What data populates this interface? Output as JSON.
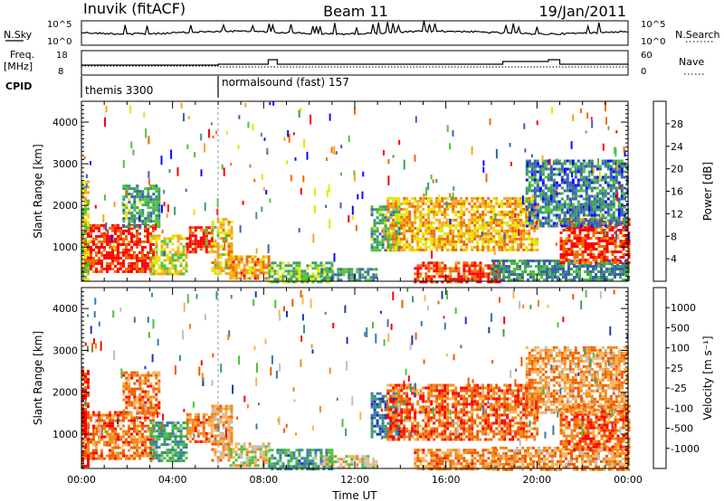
{
  "header": {
    "title": "Inuvik (fitACF)",
    "beam": "Beam 11",
    "date": "19/Jan/2011"
  },
  "strip_labels": {
    "nsky": "N.Sky",
    "nsearch": "N.Search",
    "freq_line1": "Freq.",
    "freq_line2": "[MHz]",
    "nave": "Nave",
    "cpid": "CPID",
    "nsky_ticks": [
      "10^5",
      "10^0"
    ],
    "nsearch_ticks": [
      "10^5",
      "10^0"
    ],
    "freq_ticks": [
      "18",
      "8"
    ],
    "nave_ticks": [
      "60",
      "0"
    ]
  },
  "cpid_segments": [
    {
      "label": "themis 3300",
      "start_hour": 0
    },
    {
      "label": "normalsound (fast) 157",
      "start_hour": 6
    }
  ],
  "colors": {
    "power": [
      "#0a0aff",
      "#3d5fb6",
      "#3f9a6a",
      "#52c23a",
      "#e6e600",
      "#f5a623",
      "#f06a00",
      "#ff0000"
    ],
    "velocity": [
      "#ff0000",
      "#f05a00",
      "#f08a1a",
      "#f8b45a",
      "#c0c0c0",
      "#4ec03c",
      "#3f9a6a",
      "#3a78b0",
      "#1a3aa8"
    ]
  },
  "chart_data": [
    {
      "type": "heatmap",
      "title": "",
      "xlabel": "Time UT",
      "ylabel": "Slant Range [km]",
      "xlim": [
        0,
        24
      ],
      "ylim": [
        180,
        4500
      ],
      "x_ticks": [
        "00:00",
        "04:00",
        "08:00",
        "12:00",
        "16:00",
        "20:00",
        "00:00"
      ],
      "y_ticks": [
        1000,
        2000,
        3000,
        4000
      ],
      "colorbar_label": "Power [dB]",
      "colorbar_ticks": [
        "4",
        "8",
        "12",
        "16",
        "20",
        "24",
        "28"
      ],
      "regions": [
        {
          "t0": 0.0,
          "t1": 3.2,
          "r0": 420,
          "r1": 1550,
          "level": 0.92
        },
        {
          "t0": 0.0,
          "t1": 0.3,
          "r0": 250,
          "r1": 2600,
          "level": 0.55
        },
        {
          "t0": 1.8,
          "t1": 3.4,
          "r0": 1500,
          "r1": 2500,
          "level": 0.35
        },
        {
          "t0": 3.0,
          "t1": 4.6,
          "r0": 380,
          "r1": 1300,
          "level": 0.55
        },
        {
          "t0": 4.6,
          "t1": 5.7,
          "r0": 850,
          "r1": 1500,
          "level": 0.9
        },
        {
          "t0": 5.7,
          "t1": 6.6,
          "r0": 350,
          "r1": 1700,
          "level": 0.62
        },
        {
          "t0": 6.5,
          "t1": 8.2,
          "r0": 250,
          "r1": 800,
          "level": 0.72
        },
        {
          "t0": 8.2,
          "t1": 11.0,
          "r0": 180,
          "r1": 650,
          "level": 0.45
        },
        {
          "t0": 10.5,
          "t1": 13.0,
          "r0": 180,
          "r1": 500,
          "level": 0.3
        },
        {
          "t0": 12.7,
          "t1": 14.0,
          "r0": 900,
          "r1": 2000,
          "level": 0.35
        },
        {
          "t0": 13.4,
          "t1": 20.0,
          "r0": 900,
          "r1": 2200,
          "level": 0.68
        },
        {
          "t0": 14.6,
          "t1": 18.4,
          "r0": 180,
          "r1": 650,
          "level": 0.9
        },
        {
          "t0": 18.0,
          "t1": 24.0,
          "r0": 180,
          "r1": 700,
          "level": 0.3
        },
        {
          "t0": 21.0,
          "t1": 24.0,
          "r0": 600,
          "r1": 1700,
          "level": 0.88
        },
        {
          "t0": 19.5,
          "t1": 24.0,
          "r0": 1500,
          "r1": 3100,
          "level": 0.25
        }
      ]
    },
    {
      "type": "heatmap",
      "title": "",
      "xlabel": "Time UT",
      "ylabel": "Slant Range [km]",
      "xlim": [
        0,
        24
      ],
      "ylim": [
        180,
        4500
      ],
      "x_ticks": [
        "00:00",
        "04:00",
        "08:00",
        "12:00",
        "16:00",
        "20:00",
        "00:00"
      ],
      "y_ticks": [
        1000,
        2000,
        3000,
        4000
      ],
      "colorbar_label": "Velocity [m s⁻¹]",
      "colorbar_ticks": [
        "1000",
        "500",
        "100",
        "25",
        "-25",
        "-100",
        "-500",
        "-1000"
      ],
      "regions": [
        {
          "t0": 0.0,
          "t1": 3.2,
          "r0": 420,
          "r1": 1550,
          "level": 0.22
        },
        {
          "t0": 0.0,
          "t1": 0.3,
          "r0": 250,
          "r1": 2600,
          "level": 0.1
        },
        {
          "t0": 1.8,
          "t1": 3.4,
          "r0": 1500,
          "r1": 2500,
          "level": 0.25
        },
        {
          "t0": 3.0,
          "t1": 4.6,
          "r0": 380,
          "r1": 1300,
          "level": 0.7
        },
        {
          "t0": 4.6,
          "t1": 5.7,
          "r0": 850,
          "r1": 1500,
          "level": 0.25
        },
        {
          "t0": 5.7,
          "t1": 6.6,
          "r0": 350,
          "r1": 1700,
          "level": 0.35
        },
        {
          "t0": 6.5,
          "t1": 8.2,
          "r0": 250,
          "r1": 800,
          "level": 0.45
        },
        {
          "t0": 8.2,
          "t1": 11.0,
          "r0": 180,
          "r1": 650,
          "level": 0.72
        },
        {
          "t0": 10.5,
          "t1": 13.0,
          "r0": 180,
          "r1": 500,
          "level": 0.45
        },
        {
          "t0": 12.7,
          "t1": 14.0,
          "r0": 900,
          "r1": 2000,
          "level": 0.85
        },
        {
          "t0": 13.4,
          "t1": 20.0,
          "r0": 900,
          "r1": 2200,
          "level": 0.2
        },
        {
          "t0": 14.6,
          "t1": 18.4,
          "r0": 180,
          "r1": 650,
          "level": 0.25
        },
        {
          "t0": 18.0,
          "t1": 24.0,
          "r0": 180,
          "r1": 700,
          "level": 0.3
        },
        {
          "t0": 21.0,
          "t1": 24.0,
          "r0": 600,
          "r1": 1700,
          "level": 0.2
        },
        {
          "t0": 19.5,
          "t1": 24.0,
          "r0": 1500,
          "r1": 3100,
          "level": 0.3
        }
      ]
    }
  ]
}
